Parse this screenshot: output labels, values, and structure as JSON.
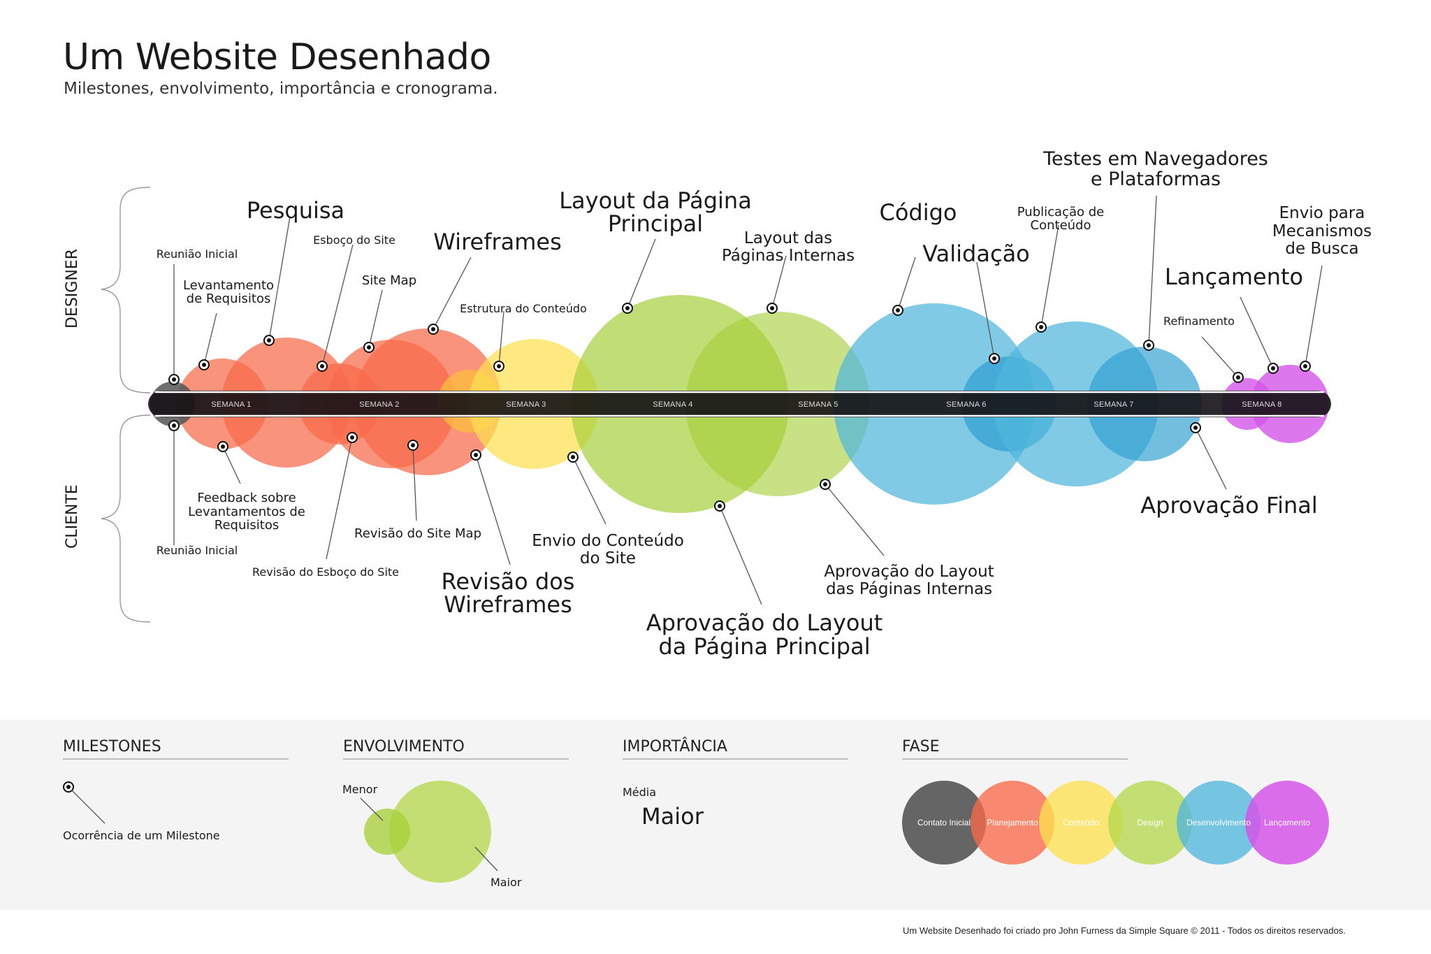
{
  "title": "Um Website Desenhado",
  "subtitle": "Milestones, envolvimento, importância e cronograma.",
  "side_labels": {
    "designer": "DESIGNER",
    "cliente": "CLIENTE"
  },
  "weeks": [
    "SEMANA 1",
    "SEMANA 2",
    "SEMANA 3",
    "SEMANA 4",
    "SEMANA 5",
    "SEMANA 6",
    "SEMANA 7",
    "SEMANA 8"
  ],
  "phase_colors": {
    "contato_inicial": "#555555",
    "planejamento": "#f86a4a",
    "conteudo": "#fde050",
    "design": "#b5d84e",
    "desenvolvimento": "#4fb6dc",
    "lancamento": "#d455e8"
  },
  "designer_milestones": [
    {
      "id": "reuniao-inicial-designer",
      "label": "Reunião Inicial",
      "importance": "Média"
    },
    {
      "id": "levantamento-requisitos",
      "label": "Levantamento de Requisitos",
      "importance": "Média"
    },
    {
      "id": "pesquisa",
      "label": "Pesquisa",
      "importance": "Maior"
    },
    {
      "id": "esboco-site",
      "label": "Esboço do Site",
      "importance": "Média"
    },
    {
      "id": "site-map",
      "label": "Site Map",
      "importance": "Média"
    },
    {
      "id": "wireframes",
      "label": "Wireframes",
      "importance": "Maior"
    },
    {
      "id": "estrutura-conteudo",
      "label": "Estrutura do Conteúdo",
      "importance": "Média"
    },
    {
      "id": "layout-pagina-principal",
      "label": "Layout da Página Principal",
      "importance": "Maior"
    },
    {
      "id": "layout-paginas-internas",
      "label": "Layout das Páginas Internas",
      "importance": "Média"
    },
    {
      "id": "codigo",
      "label": "Código",
      "importance": "Maior"
    },
    {
      "id": "validacao",
      "label": "Validação",
      "importance": "Maior"
    },
    {
      "id": "publicacao-conteudo",
      "label": "Publicação de Conteúdo",
      "importance": "Média"
    },
    {
      "id": "testes-navegadores",
      "label": "Testes em Navegadores e Plataformas",
      "importance": "Maior"
    },
    {
      "id": "refinamento",
      "label": "Refinamento",
      "importance": "Média"
    },
    {
      "id": "lancamento",
      "label": "Lançamento",
      "importance": "Maior"
    },
    {
      "id": "envio-mecanismos",
      "label": "Envio para Mecanismos de Busca",
      "importance": "Média"
    }
  ],
  "cliente_milestones": [
    {
      "id": "reuniao-inicial-cliente",
      "label": "Reunião Inicial",
      "importance": "Média"
    },
    {
      "id": "feedback-requisitos",
      "label": "Feedback sobre Levantamentos de Requisitos",
      "importance": "Média"
    },
    {
      "id": "revisao-esboco",
      "label": "Revisão do Esboço do Site",
      "importance": "Média"
    },
    {
      "id": "revisao-site-map",
      "label": "Revisão do Site Map",
      "importance": "Média"
    },
    {
      "id": "revisao-wireframes",
      "label": "Revisão dos Wireframes",
      "importance": "Maior"
    },
    {
      "id": "envio-conteudo",
      "label": "Envio do Conteúdo do Site",
      "importance": "Média"
    },
    {
      "id": "aprovacao-layout-principal",
      "label": "Aprovação do Layout da Página Principal",
      "importance": "Maior"
    },
    {
      "id": "aprovacao-layout-internas",
      "label": "Aprovação do Layout das Páginas Internas",
      "importance": "Média"
    },
    {
      "id": "aprovacao-final",
      "label": "Aprovação Final",
      "importance": "Maior"
    }
  ],
  "legend": {
    "milestones": {
      "heading": "MILESTONES",
      "item": "Ocorrência de um Milestone"
    },
    "envolvimento": {
      "heading": "ENVOLVIMENTO",
      "menor": "Menor",
      "maior": "Maior"
    },
    "importancia": {
      "heading": "IMPORTÂNCIA",
      "media": "Média",
      "maior": "Maior"
    },
    "fase": {
      "heading": "FASE",
      "phases": [
        "Contato Inicial",
        "Planejamento",
        "Conteúdo",
        "Design",
        "Desenvolvimento",
        "Lançamento"
      ]
    }
  },
  "footer": "Um Website Desenhado foi criado pro John Furness da Simple Square © 2011 - Todos os direitos reservados."
}
